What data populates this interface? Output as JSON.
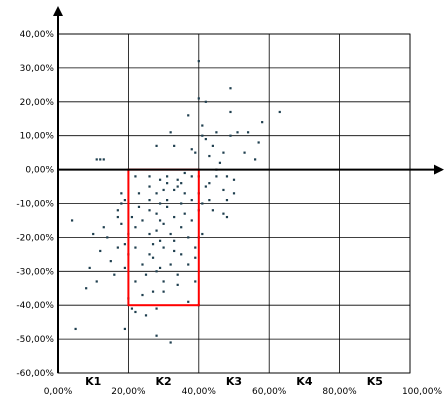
{
  "chart_data": {
    "type": "scatter",
    "title": "",
    "xlabel": "",
    "ylabel": "",
    "xlim": [
      0,
      100
    ],
    "ylim": [
      -60,
      40
    ],
    "x_ticks": [
      0,
      20,
      40,
      60,
      80,
      100
    ],
    "y_ticks": [
      -60,
      -50,
      -40,
      -30,
      -20,
      -10,
      0,
      10,
      20,
      30,
      40
    ],
    "x_tick_labels": [
      "0,00%",
      "20,00%",
      "40,00%",
      "60,00%",
      "80,00%",
      "100,00%"
    ],
    "y_tick_labels": [
      "-60,00%",
      "-50,00%",
      "-40,00%",
      "-30,00%",
      "-20,00%",
      "-10,00%",
      "0,00%",
      "10,00%",
      "20,00%",
      "30,00%",
      "40,00%"
    ],
    "grid": true,
    "zones": [
      {
        "label": "K1",
        "x": 10
      },
      {
        "label": "K2",
        "x": 30
      },
      {
        "label": "K3",
        "x": 50
      },
      {
        "label": "K4",
        "x": 70
      },
      {
        "label": "K5",
        "x": 90
      }
    ],
    "highlight_rect": {
      "x0": 20,
      "x1": 40,
      "y0": -40,
      "y1": 0,
      "color": "#ff0000"
    },
    "point_color": "#1f3f4f",
    "axis_color": "#000000",
    "points": [
      [
        4,
        -15
      ],
      [
        5,
        -47
      ],
      [
        8,
        -35
      ],
      [
        9,
        -29
      ],
      [
        10,
        -19
      ],
      [
        11,
        -33
      ],
      [
        11,
        3
      ],
      [
        12,
        3
      ],
      [
        13,
        3
      ],
      [
        12,
        -24
      ],
      [
        13,
        -17
      ],
      [
        14,
        -20
      ],
      [
        15,
        -27
      ],
      [
        16,
        -31
      ],
      [
        17,
        -23
      ],
      [
        17,
        -12
      ],
      [
        17,
        -14
      ],
      [
        18,
        -16
      ],
      [
        18,
        -10
      ],
      [
        19,
        -22
      ],
      [
        19,
        -9
      ],
      [
        18,
        -7
      ],
      [
        19,
        -29
      ],
      [
        20,
        -25
      ],
      [
        20,
        -19
      ],
      [
        21,
        -14
      ],
      [
        19,
        -47
      ],
      [
        20,
        -38
      ],
      [
        21,
        -41
      ],
      [
        22,
        -42
      ],
      [
        22,
        -33
      ],
      [
        22,
        -23
      ],
      [
        22,
        -17
      ],
      [
        23,
        -11
      ],
      [
        23,
        -7
      ],
      [
        22,
        -2
      ],
      [
        24,
        -15
      ],
      [
        24,
        -28
      ],
      [
        24,
        -37
      ],
      [
        25,
        -43
      ],
      [
        25,
        -31
      ],
      [
        26,
        -25
      ],
      [
        26,
        -19
      ],
      [
        26,
        -12
      ],
      [
        26,
        -9
      ],
      [
        26,
        -5
      ],
      [
        26,
        -2
      ],
      [
        27,
        -22
      ],
      [
        27,
        -26
      ],
      [
        27,
        -36
      ],
      [
        28,
        -49
      ],
      [
        28,
        -41
      ],
      [
        28,
        -30
      ],
      [
        28,
        -18
      ],
      [
        28,
        -13
      ],
      [
        28,
        -7
      ],
      [
        28,
        7
      ],
      [
        29,
        -29
      ],
      [
        29,
        -21
      ],
      [
        29,
        -15
      ],
      [
        29,
        -10
      ],
      [
        29,
        -3
      ],
      [
        30,
        -23
      ],
      [
        30,
        -16
      ],
      [
        30,
        -6
      ],
      [
        30,
        -33
      ],
      [
        30,
        -36
      ],
      [
        31,
        -9
      ],
      [
        31,
        -4
      ],
      [
        31,
        -2
      ],
      [
        31,
        -11
      ],
      [
        32,
        -19
      ],
      [
        32,
        -28
      ],
      [
        32,
        -51
      ],
      [
        32,
        11
      ],
      [
        33,
        -6
      ],
      [
        33,
        -14
      ],
      [
        33,
        -21
      ],
      [
        33,
        -24
      ],
      [
        33,
        7
      ],
      [
        34,
        -31
      ],
      [
        34,
        -34
      ],
      [
        34,
        -3
      ],
      [
        34,
        -5
      ],
      [
        35,
        -10
      ],
      [
        35,
        -17
      ],
      [
        35,
        -25
      ],
      [
        35,
        -4
      ],
      [
        36,
        -7
      ],
      [
        36,
        -13
      ],
      [
        36,
        -1
      ],
      [
        37,
        -20
      ],
      [
        37,
        -28
      ],
      [
        37,
        -39
      ],
      [
        37,
        16
      ],
      [
        38,
        6
      ],
      [
        38,
        -2
      ],
      [
        38,
        -9
      ],
      [
        38,
        -15
      ],
      [
        39,
        5
      ],
      [
        39,
        -23
      ],
      [
        39,
        -26
      ],
      [
        39,
        -33
      ],
      [
        40,
        -40
      ],
      [
        40,
        -20
      ],
      [
        40,
        -12
      ],
      [
        40,
        -7
      ],
      [
        40,
        -2
      ],
      [
        40,
        32
      ],
      [
        40,
        21
      ],
      [
        41,
        -19
      ],
      [
        41,
        -10
      ],
      [
        41,
        13
      ],
      [
        41,
        10
      ],
      [
        42,
        -5
      ],
      [
        42,
        9
      ],
      [
        42,
        20
      ],
      [
        43,
        -9
      ],
      [
        43,
        -4
      ],
      [
        43,
        4
      ],
      [
        44,
        -12
      ],
      [
        44,
        7
      ],
      [
        45,
        11
      ],
      [
        45,
        -2
      ],
      [
        45,
        0
      ],
      [
        46,
        2
      ],
      [
        47,
        -13
      ],
      [
        47,
        -6
      ],
      [
        47,
        5
      ],
      [
        48,
        -9
      ],
      [
        48,
        -2
      ],
      [
        48,
        -14
      ],
      [
        49,
        17
      ],
      [
        49,
        24
      ],
      [
        49,
        10
      ],
      [
        50,
        -7
      ],
      [
        50,
        -3
      ],
      [
        51,
        11
      ],
      [
        53,
        5
      ],
      [
        54,
        11
      ],
      [
        56,
        3
      ],
      [
        57,
        8
      ],
      [
        58,
        14
      ],
      [
        63,
        17
      ]
    ]
  }
}
